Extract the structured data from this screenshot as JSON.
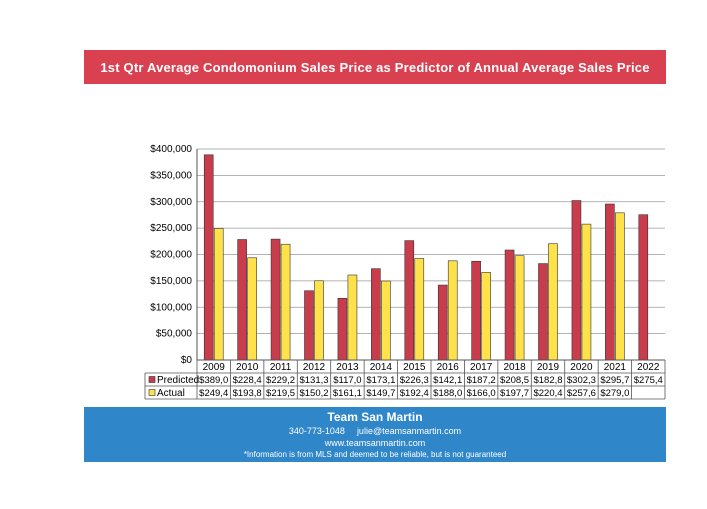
{
  "colors": {
    "banner": "#d94150",
    "footer": "#2f86c9",
    "predicted": "#c83c4b",
    "actual": "#ffe24a",
    "grid": "#9a9a9a",
    "plot_bg": "#ffffff"
  },
  "chart_data": {
    "type": "bar",
    "title": "1st Qtr Average Condomonium Sales Price as Predictor of Annual Average Sales Price",
    "categories": [
      "2009",
      "2010",
      "2011",
      "2012",
      "2013",
      "2014",
      "2015",
      "2016",
      "2017",
      "2018",
      "2019",
      "2020",
      "2021",
      "2022"
    ],
    "series": [
      {
        "name": "Predicted",
        "values": [
          389000,
          228400,
          229200,
          131300,
          117000,
          173100,
          226300,
          142100,
          187200,
          208500,
          182800,
          302300,
          295700,
          275400
        ]
      },
      {
        "name": "Actual",
        "values": [
          249400,
          193800,
          219500,
          150200,
          161100,
          149700,
          192400,
          188000,
          166000,
          197700,
          220400,
          257600,
          279000,
          null
        ]
      }
    ],
    "table_labels": {
      "Predicted": [
        "$389,0",
        "$228,4",
        "$229,2",
        "$131,3",
        "$117,0",
        "$173,1",
        "$226,3",
        "$142,1",
        "$187,2",
        "$208,5",
        "$182,8",
        "$302,3",
        "$295,7",
        "$275,4"
      ],
      "Actual": [
        "$249,4",
        "$193,8",
        "$219,5",
        "$150,2",
        "$161,1",
        "$149,7",
        "$192,4",
        "$188,0",
        "$166,0",
        "$197,7",
        "$220,4",
        "$257,6",
        "$279,0",
        ""
      ]
    },
    "ylim": [
      0,
      400000
    ],
    "yticks": [
      0,
      50000,
      100000,
      150000,
      200000,
      250000,
      300000,
      350000,
      400000
    ],
    "ytick_labels": [
      "$0",
      "$50,000",
      "$100,000",
      "$150,000",
      "$200,000",
      "$250,000",
      "$300,000",
      "$350,000",
      "$400,000"
    ],
    "grid": true,
    "legend": "data-table"
  },
  "footer": {
    "org": "Team San Martin",
    "phone": "340-773-1048",
    "email": "julie@teamsanmartin.com",
    "website": "www.teamsanmartin.com",
    "disclaimer": "*Information is from MLS and deemed to be reliable, but is not guaranteed"
  }
}
